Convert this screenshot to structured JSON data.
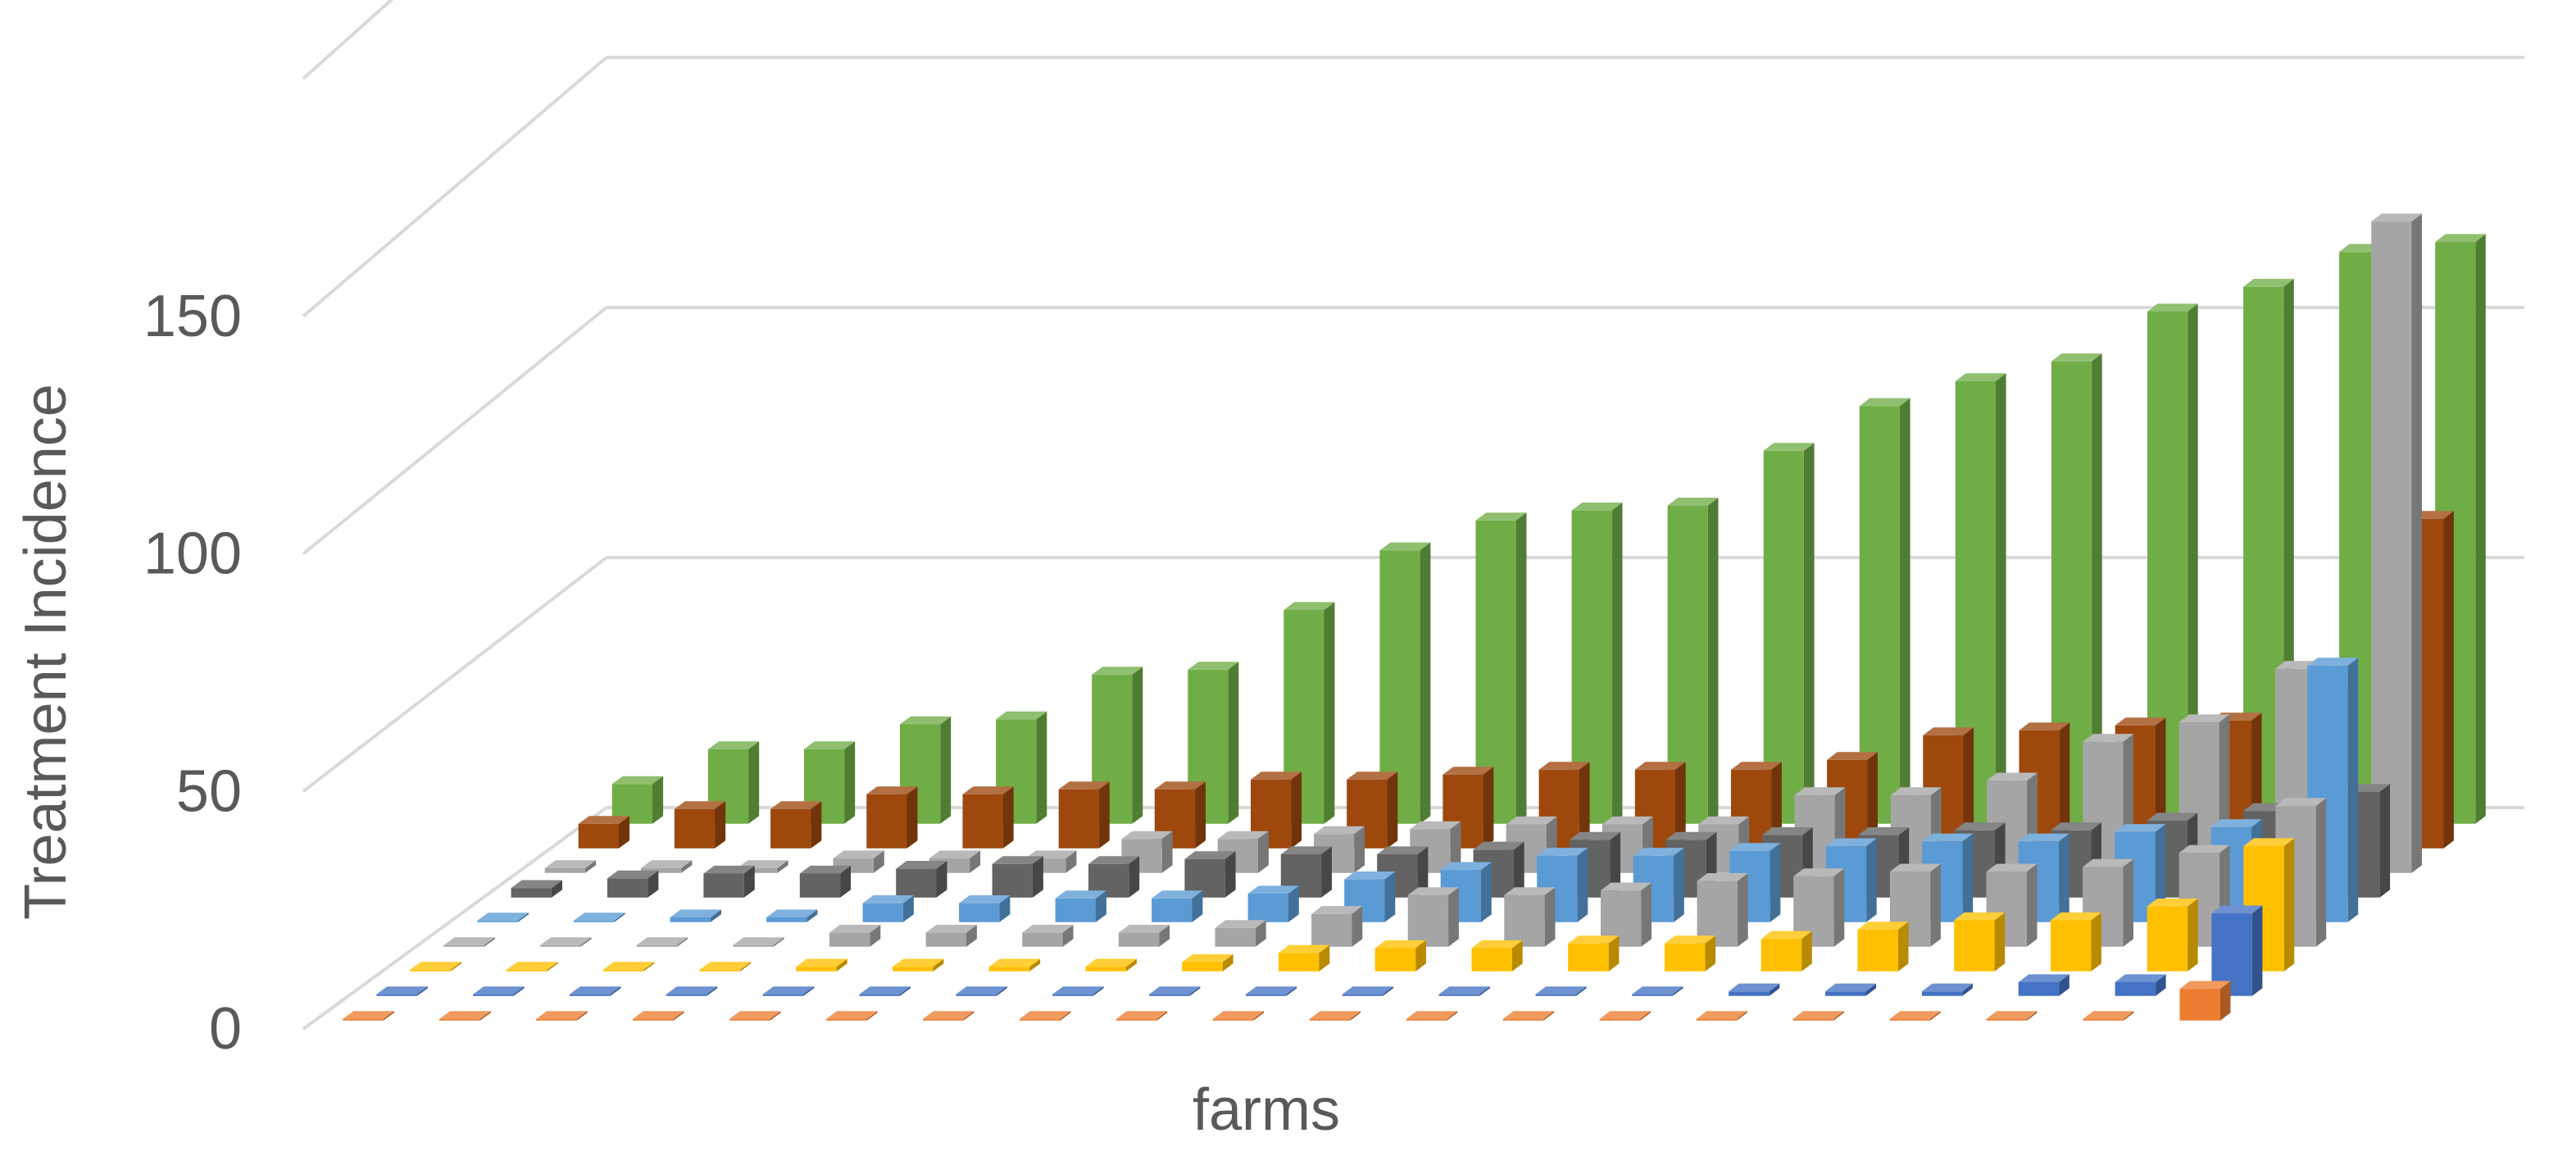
{
  "chart_data": {
    "type": "bar",
    "subtype": "3d-column",
    "title": "",
    "xlabel": "farms",
    "ylabel": "Treatment  Incidence",
    "ylim": [
      0,
      200
    ],
    "yticks": [
      "0",
      "50",
      "100",
      "150"
    ],
    "grid": true,
    "legend": "none",
    "categories_count": 20,
    "series": [
      {
        "color": "#ED7D31",
        "values": [
          0,
          0,
          0,
          0,
          0,
          0,
          0,
          0,
          0,
          0,
          0,
          0,
          0,
          0,
          0,
          0,
          0,
          0,
          0,
          7
        ]
      },
      {
        "color": "#4472C4",
        "values": [
          0,
          0,
          0,
          0,
          0,
          0,
          0,
          0,
          0,
          0,
          0,
          0,
          0,
          0,
          1,
          1,
          1,
          3,
          3,
          18
        ]
      },
      {
        "color": "#FFC000",
        "values": [
          0,
          0,
          0,
          0,
          1,
          1,
          1,
          1,
          2,
          4,
          5,
          5,
          6,
          6,
          7,
          9,
          11,
          11,
          14,
          27
        ]
      },
      {
        "color": "#A5A5A5",
        "values": [
          0,
          0,
          0,
          0,
          3,
          3,
          3,
          3,
          4,
          7,
          11,
          11,
          12,
          14,
          15,
          16,
          16,
          17,
          20,
          30
        ]
      },
      {
        "color": "#5B9BD5",
        "values": [
          0,
          0,
          1,
          1,
          4,
          4,
          5,
          5,
          6,
          9,
          11,
          14,
          14,
          15,
          16,
          17,
          17,
          19,
          20,
          54
        ]
      },
      {
        "color": "#636363",
        "values": [
          2,
          4,
          5,
          5,
          6,
          7,
          7,
          8,
          9,
          9,
          10,
          12,
          12,
          13,
          13,
          14,
          14,
          16,
          18,
          22
        ]
      },
      {
        "color": "#A5A5A5",
        "values": [
          1,
          1,
          1,
          3,
          3,
          3,
          7,
          7,
          8,
          9,
          10,
          10,
          10,
          16,
          16,
          19,
          27,
          31,
          42,
          134
        ]
      },
      {
        "color": "#9E480E",
        "values": [
          5,
          8,
          8,
          11,
          11,
          12,
          12,
          14,
          14,
          15,
          16,
          16,
          16,
          18,
          23,
          24,
          25,
          26,
          33,
          67
        ]
      },
      {
        "color": "#70AD47",
        "values": [
          8,
          15,
          15,
          20,
          21,
          30,
          31,
          43,
          55,
          61,
          63,
          64,
          75,
          84,
          89,
          93,
          103,
          108,
          115,
          117
        ]
      }
    ]
  }
}
